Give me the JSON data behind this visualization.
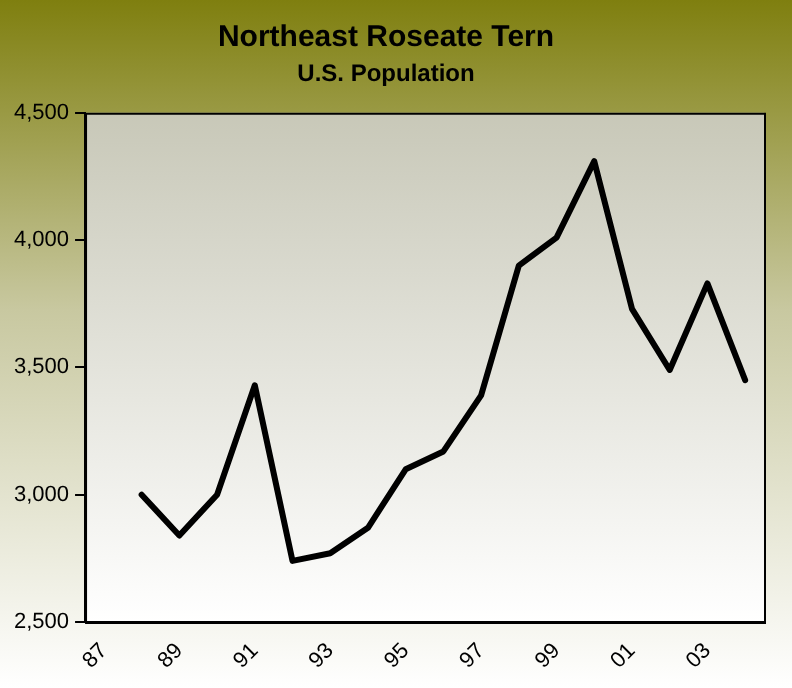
{
  "chart_data": {
    "type": "line",
    "title": "Northeast Roseate Tern",
    "subtitle": "U.S. Population",
    "categories": [
      "87",
      null,
      "89",
      null,
      "91",
      null,
      "93",
      null,
      "95",
      null,
      "97",
      null,
      "99",
      null,
      "01",
      null,
      "03",
      null
    ],
    "series": [
      {
        "color": "#000000",
        "values": [
          null,
          3000,
          2840,
          3000,
          3430,
          2740,
          2770,
          2870,
          3100,
          3170,
          3390,
          3900,
          4010,
          4310,
          3730,
          3490,
          3830,
          3450
        ]
      }
    ],
    "ylim": [
      2500,
      4500
    ],
    "yticks": [
      {
        "value": 2500,
        "label": "2,500"
      },
      {
        "value": 3000,
        "label": "3,000"
      },
      {
        "value": 3500,
        "label": "3,500"
      },
      {
        "value": 4000,
        "label": "4,000"
      },
      {
        "value": 4500,
        "label": "4,500"
      }
    ],
    "grid": false,
    "legend": false,
    "marker": "none",
    "line_style": "solid"
  }
}
